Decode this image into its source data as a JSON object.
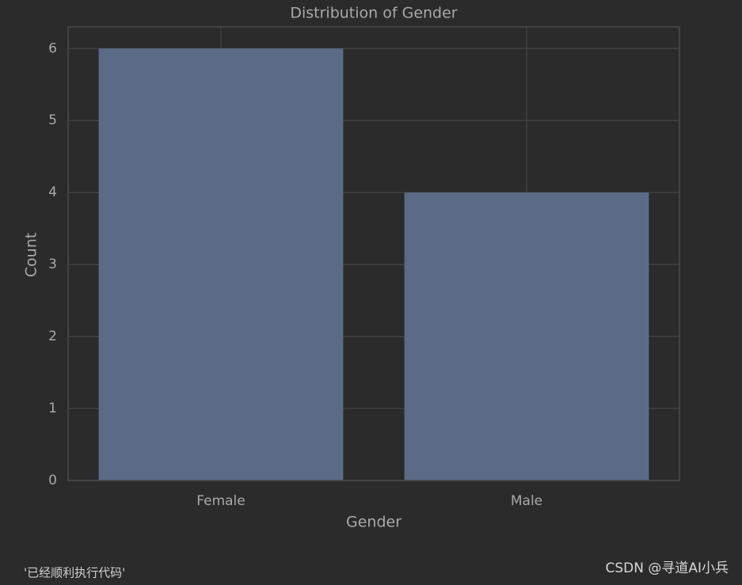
{
  "chart_data": {
    "type": "bar",
    "title": "Distribution of Gender",
    "x_label": "Gender",
    "y_label": "Count",
    "categories": [
      "Female",
      "Male"
    ],
    "values": [
      6,
      4
    ],
    "color": "#5b6b86",
    "ylim": [
      0,
      6.3
    ],
    "yticks": [
      0,
      1,
      2,
      3,
      4,
      5,
      6
    ],
    "grid": true
  },
  "output_text": "'已经顺利执行代码'",
  "watermark": "CSDN @寻道AI小兵"
}
